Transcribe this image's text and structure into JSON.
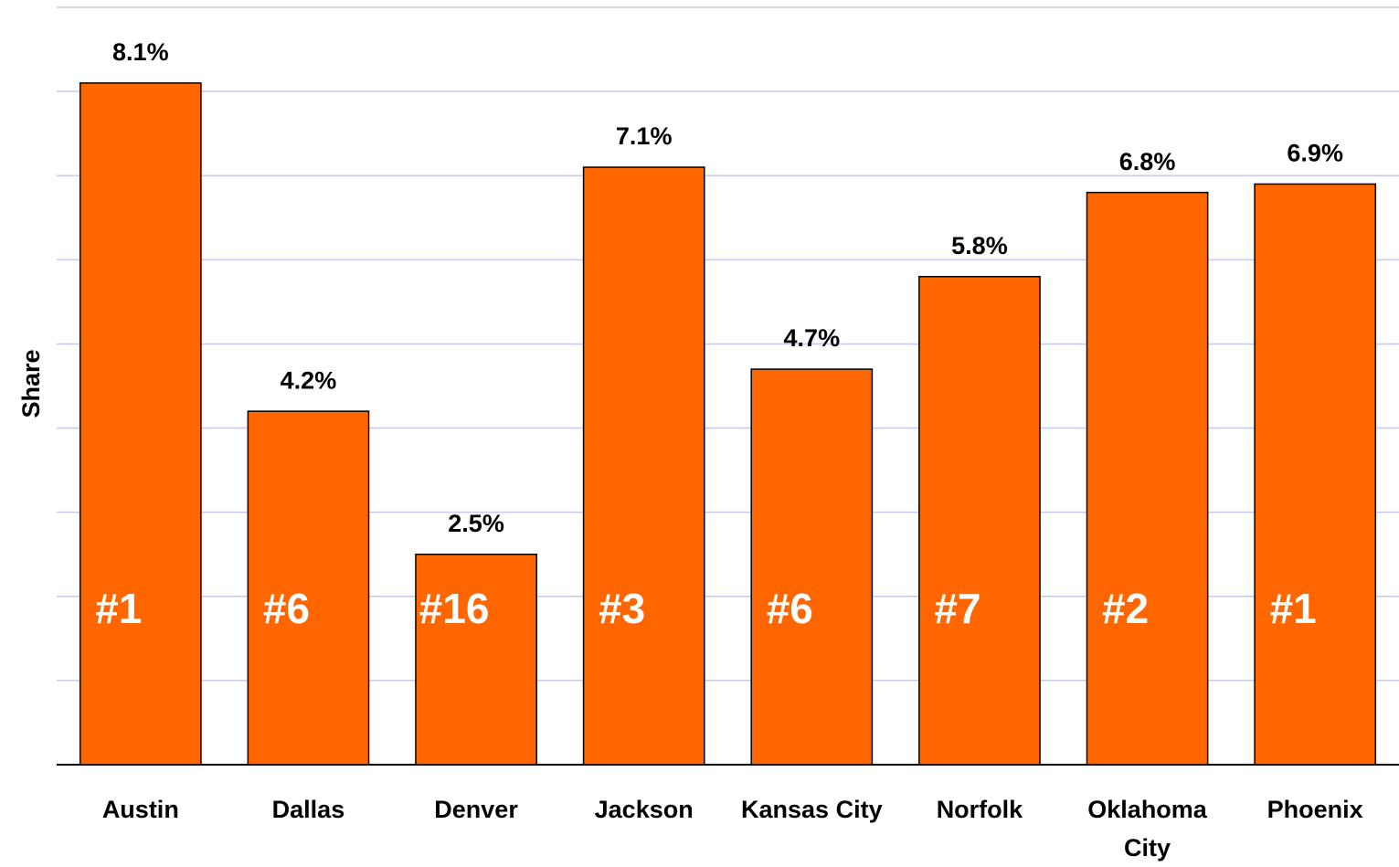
{
  "chart_data": {
    "type": "bar",
    "y_label": "Share",
    "categories": [
      "Austin",
      "Dallas",
      "Denver",
      "Jackson",
      "Kansas City",
      "Norfolk",
      "Oklahoma City",
      "Phoenix"
    ],
    "values": [
      8.1,
      4.2,
      2.5,
      7.1,
      4.7,
      5.8,
      6.8,
      6.9
    ],
    "value_labels": [
      "8.1%",
      "4.2%",
      "2.5%",
      "7.1%",
      "4.7%",
      "5.8%",
      "6.8%",
      "6.9%"
    ],
    "annotations": [
      "#1",
      "#6",
      "#16",
      "#3",
      "#6",
      "#7",
      "#2",
      "#1"
    ],
    "color": "#ff6600",
    "ylim": [
      0,
      9
    ],
    "yticks": [
      0,
      1,
      2,
      3,
      4,
      5,
      6,
      7,
      8,
      9
    ],
    "grid": true
  }
}
